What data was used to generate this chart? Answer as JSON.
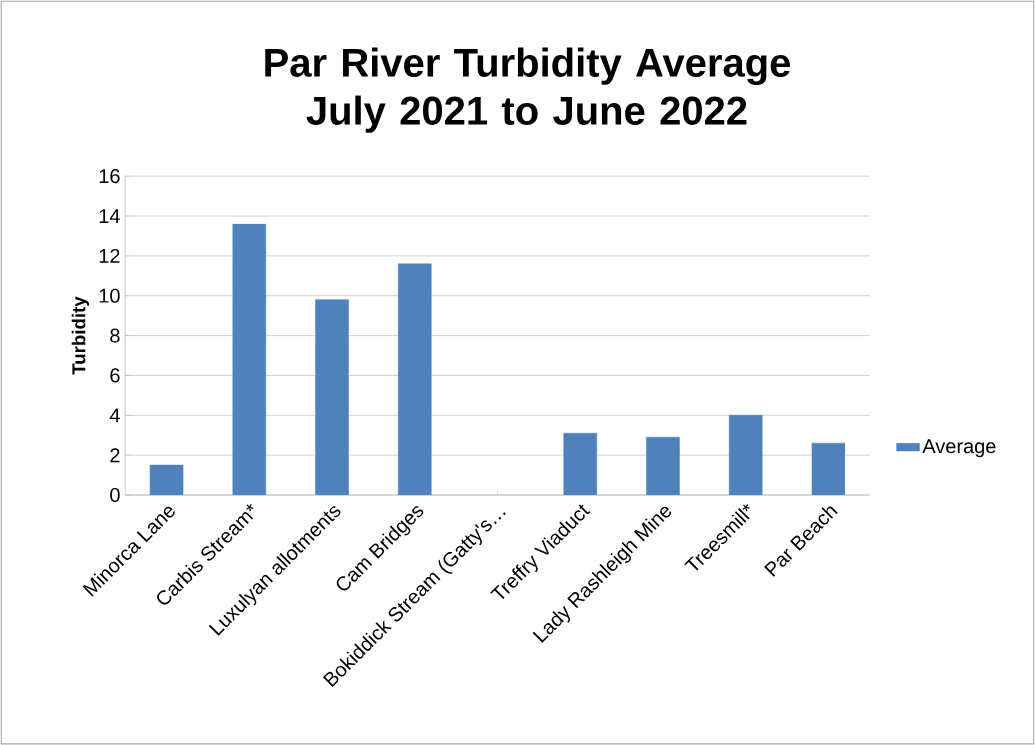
{
  "chart_data": {
    "type": "bar",
    "title": "Par River Turbidity Average July 2021 to June 2022",
    "ylabel": "Turbidity",
    "categories": [
      "Minorca Lane",
      "Carbis Stream*",
      "Luxulyan allotments",
      "Cam Bridges",
      "Bokiddick Stream (Gatty's…",
      "Treffry Viaduct",
      "Lady Rashleigh Mine",
      "Treesmill*",
      "Par Beach"
    ],
    "series": [
      {
        "name": "Average",
        "color": "#4f81bd",
        "values": [
          1.5,
          13.6,
          9.8,
          11.6,
          null,
          3.1,
          2.9,
          4.0,
          2.6
        ]
      }
    ],
    "ylim": [
      0,
      16
    ],
    "yticks": [
      0,
      2,
      4,
      6,
      8,
      10,
      12,
      14,
      16
    ],
    "grid": "y",
    "legend": "right"
  }
}
